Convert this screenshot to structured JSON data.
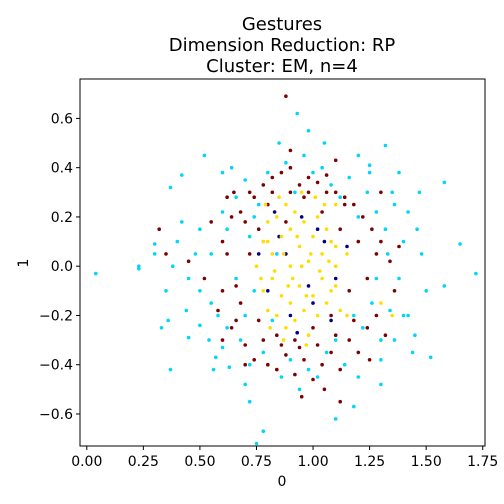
{
  "chart_data": {
    "type": "scatter",
    "title_lines": [
      "Gestures",
      "Dimension Reduction: RP",
      "Cluster: EM, n=4"
    ],
    "xlabel": "0",
    "ylabel": "1",
    "xlim": [
      -0.03,
      1.76
    ],
    "ylim": [
      -0.73,
      0.76
    ],
    "xticks": [
      0.0,
      0.25,
      0.5,
      0.75,
      1.0,
      1.25,
      1.5,
      1.75
    ],
    "xtick_labels": [
      "0.00",
      "0.25",
      "0.50",
      "0.75",
      "1.00",
      "1.25",
      "1.50",
      "1.75"
    ],
    "yticks": [
      -0.6,
      -0.4,
      -0.2,
      0.0,
      0.2,
      0.4,
      0.6
    ],
    "ytick_labels": [
      "−0.6",
      "−0.4",
      "−0.2",
      "0.0",
      "0.2",
      "0.4",
      "0.6"
    ],
    "grid": false,
    "series": [
      {
        "color": "#00d5ff",
        "values": [
          [
            0.04,
            -0.03
          ],
          [
            0.23,
            -0.01
          ],
          [
            0.23,
            0.0
          ],
          [
            0.3,
            0.05
          ],
          [
            0.3,
            0.09
          ],
          [
            0.33,
            -0.25
          ],
          [
            0.37,
            -0.42
          ],
          [
            0.37,
            0.32
          ],
          [
            0.42,
            0.37
          ],
          [
            0.45,
            -0.29
          ],
          [
            0.5,
            -0.24
          ],
          [
            0.52,
            0.45
          ],
          [
            0.57,
            -0.37
          ],
          [
            0.6,
            0.38
          ],
          [
            0.63,
            -0.41
          ],
          [
            0.7,
            -0.48
          ],
          [
            0.72,
            -0.55
          ],
          [
            0.75,
            -0.72
          ],
          [
            0.78,
            -0.67
          ],
          [
            0.85,
            0.5
          ],
          [
            0.93,
            0.62
          ],
          [
            0.98,
            0.55
          ],
          [
            1.05,
            0.5
          ],
          [
            1.1,
            -0.62
          ],
          [
            1.18,
            -0.57
          ],
          [
            1.2,
            0.45
          ],
          [
            1.25,
            0.41
          ],
          [
            1.3,
            -0.48
          ],
          [
            1.32,
            0.49
          ],
          [
            1.38,
            0.38
          ],
          [
            1.42,
            -0.2
          ],
          [
            1.47,
            0.3
          ],
          [
            1.5,
            -0.1
          ],
          [
            1.52,
            -0.37
          ],
          [
            1.58,
            0.34
          ],
          [
            1.58,
            -0.08
          ],
          [
            1.65,
            0.09
          ],
          [
            1.72,
            -0.03
          ],
          [
            0.35,
            -0.1
          ],
          [
            0.4,
            0.1
          ],
          [
            0.45,
            -0.05
          ],
          [
            0.5,
            0.15
          ],
          [
            0.55,
            -0.15
          ],
          [
            0.6,
            0.22
          ],
          [
            0.62,
            -0.25
          ],
          [
            0.65,
            0.3
          ],
          [
            0.68,
            -0.3
          ],
          [
            0.7,
            0.35
          ],
          [
            0.72,
            0.12
          ],
          [
            0.74,
            -0.1
          ],
          [
            0.76,
            0.25
          ],
          [
            0.78,
            -0.35
          ],
          [
            0.8,
            0.38
          ],
          [
            0.82,
            -0.22
          ],
          [
            0.84,
            0.05
          ],
          [
            0.86,
            -0.45
          ],
          [
            0.88,
            0.42
          ],
          [
            0.9,
            -0.38
          ],
          [
            0.92,
            0.3
          ],
          [
            0.94,
            -0.5
          ],
          [
            0.96,
            0.45
          ],
          [
            0.98,
            -0.42
          ],
          [
            1.0,
            0.38
          ],
          [
            1.02,
            -0.45
          ],
          [
            1.04,
            0.4
          ],
          [
            1.06,
            -0.35
          ],
          [
            1.08,
            0.33
          ],
          [
            1.1,
            -0.3
          ],
          [
            1.12,
            0.28
          ],
          [
            1.14,
            -0.4
          ],
          [
            1.16,
            0.36
          ],
          [
            1.18,
            -0.2
          ],
          [
            1.2,
            0.2
          ],
          [
            1.22,
            -0.25
          ],
          [
            1.24,
            0.3
          ],
          [
            1.26,
            -0.15
          ],
          [
            1.28,
            0.22
          ],
          [
            1.3,
            -0.3
          ],
          [
            1.32,
            0.15
          ],
          [
            1.34,
            -0.18
          ],
          [
            1.36,
            0.25
          ],
          [
            1.38,
            -0.05
          ],
          [
            1.4,
            0.1
          ],
          [
            1.42,
            0.22
          ],
          [
            1.45,
            -0.28
          ],
          [
            1.48,
            0.05
          ],
          [
            1.35,
            0.3
          ],
          [
            1.3,
            -0.38
          ],
          [
            1.25,
            0.38
          ],
          [
            1.2,
            -0.45
          ],
          [
            0.55,
            0.05
          ],
          [
            0.58,
            -0.2
          ],
          [
            0.62,
            0.15
          ],
          [
            0.66,
            -0.05
          ],
          [
            0.7,
            -0.2
          ],
          [
            0.74,
            0.2
          ],
          [
            0.66,
            0.28
          ],
          [
            0.6,
            -0.33
          ],
          [
            0.54,
            -0.3
          ],
          [
            0.5,
            -0.1
          ],
          [
            0.48,
            0.05
          ],
          [
            0.44,
            -0.18
          ],
          [
            0.42,
            0.18
          ],
          [
            0.38,
            0.0
          ],
          [
            0.36,
            -0.22
          ],
          [
            0.56,
            -0.42
          ],
          [
            0.64,
            0.4
          ],
          [
            0.72,
            -0.4
          ],
          [
            1.44,
            -0.35
          ],
          [
            1.46,
            0.15
          ],
          [
            1.4,
            -0.2
          ],
          [
            1.33,
            0.05
          ],
          [
            1.28,
            -0.05
          ],
          [
            1.36,
            -0.3
          ]
        ]
      },
      {
        "color": "#7f0000",
        "values": [
          [
            0.88,
            0.69
          ],
          [
            0.32,
            0.15
          ],
          [
            0.35,
            0.05
          ],
          [
            0.45,
            0.02
          ],
          [
            0.52,
            -0.05
          ],
          [
            0.55,
            0.18
          ],
          [
            0.58,
            -0.18
          ],
          [
            0.6,
            0.1
          ],
          [
            0.62,
            0.28
          ],
          [
            0.64,
            -0.25
          ],
          [
            0.66,
            -0.08
          ],
          [
            0.68,
            0.22
          ],
          [
            0.7,
            -0.32
          ],
          [
            0.72,
            0.3
          ],
          [
            0.74,
            -0.38
          ],
          [
            0.76,
            0.15
          ],
          [
            0.78,
            0.33
          ],
          [
            0.8,
            -0.4
          ],
          [
            0.82,
            0.36
          ],
          [
            0.84,
            -0.42
          ],
          [
            0.86,
            0.38
          ],
          [
            0.88,
            -0.36
          ],
          [
            0.9,
            0.4
          ],
          [
            0.92,
            -0.44
          ],
          [
            0.94,
            0.33
          ],
          [
            0.96,
            -0.38
          ],
          [
            0.98,
            0.36
          ],
          [
            1.0,
            -0.46
          ],
          [
            1.02,
            0.34
          ],
          [
            1.04,
            -0.4
          ],
          [
            1.06,
            0.37
          ],
          [
            1.08,
            -0.35
          ],
          [
            1.1,
            0.3
          ],
          [
            1.12,
            -0.42
          ],
          [
            1.14,
            0.28
          ],
          [
            1.16,
            -0.3
          ],
          [
            1.18,
            0.25
          ],
          [
            1.2,
            -0.35
          ],
          [
            1.22,
            0.2
          ],
          [
            1.24,
            -0.25
          ],
          [
            1.26,
            0.15
          ],
          [
            1.28,
            -0.2
          ],
          [
            1.3,
            0.1
          ],
          [
            1.32,
            -0.28
          ],
          [
            1.34,
            0.02
          ],
          [
            1.36,
            -0.1
          ],
          [
            1.38,
            0.08
          ],
          [
            1.12,
            -0.55
          ],
          [
            1.05,
            -0.5
          ],
          [
            0.95,
            -0.53
          ],
          [
            0.9,
            0.47
          ],
          [
            1.1,
            0.43
          ],
          [
            1.25,
            -0.38
          ],
          [
            1.3,
            0.3
          ],
          [
            0.65,
            0.3
          ],
          [
            0.7,
            -0.4
          ],
          [
            0.6,
            -0.3
          ],
          [
            0.62,
            0.05
          ],
          [
            0.68,
            -0.15
          ],
          [
            0.72,
            0.05
          ],
          [
            0.76,
            -0.22
          ],
          [
            0.8,
            0.25
          ],
          [
            0.84,
            -0.28
          ],
          [
            0.88,
            0.18
          ],
          [
            0.92,
            -0.3
          ],
          [
            0.96,
            0.28
          ],
          [
            1.0,
            -0.25
          ],
          [
            1.04,
            0.22
          ],
          [
            1.08,
            -0.2
          ],
          [
            1.12,
            0.15
          ],
          [
            1.16,
            -0.1
          ],
          [
            1.2,
            0.1
          ],
          [
            1.24,
            -0.05
          ],
          [
            1.28,
            0.05
          ],
          [
            0.74,
            0.28
          ],
          [
            0.78,
            -0.3
          ],
          [
            0.82,
            0.3
          ],
          [
            0.86,
            -0.32
          ],
          [
            0.9,
            0.3
          ],
          [
            0.94,
            -0.33
          ],
          [
            0.98,
            0.3
          ],
          [
            1.02,
            -0.32
          ],
          [
            1.06,
            0.3
          ],
          [
            1.1,
            -0.28
          ],
          [
            1.14,
            0.25
          ],
          [
            1.18,
            -0.22
          ],
          [
            0.7,
            0.18
          ],
          [
            0.66,
            -0.22
          ],
          [
            0.64,
            0.2
          ],
          [
            0.6,
            -0.1
          ]
        ]
      },
      {
        "color": "#00008b",
        "values": [
          [
            0.8,
            -0.1
          ],
          [
            0.85,
            0.12
          ],
          [
            0.9,
            -0.2
          ],
          [
            0.95,
            0.2
          ],
          [
            1.0,
            -0.15
          ],
          [
            1.05,
            0.1
          ],
          [
            1.1,
            -0.05
          ],
          [
            0.88,
            0.05
          ],
          [
            0.98,
            -0.08
          ],
          [
            1.02,
            0.15
          ],
          [
            0.93,
            -0.27
          ],
          [
            0.83,
            0.22
          ],
          [
            1.08,
            -0.22
          ],
          [
            0.76,
            0.05
          ],
          [
            1.15,
            0.08
          ]
        ]
      },
      {
        "color": "#ffdd00",
        "values": [
          [
            0.75,
            0.0
          ],
          [
            0.78,
            0.1
          ],
          [
            0.78,
            -0.1
          ],
          [
            0.8,
            0.18
          ],
          [
            0.8,
            -0.18
          ],
          [
            0.82,
            0.05
          ],
          [
            0.82,
            -0.05
          ],
          [
            0.84,
            0.2
          ],
          [
            0.84,
            -0.2
          ],
          [
            0.86,
            0.12
          ],
          [
            0.86,
            -0.12
          ],
          [
            0.88,
            0.25
          ],
          [
            0.88,
            -0.25
          ],
          [
            0.9,
            0.0
          ],
          [
            0.9,
            0.15
          ],
          [
            0.9,
            -0.15
          ],
          [
            0.92,
            0.22
          ],
          [
            0.92,
            -0.22
          ],
          [
            0.94,
            0.08
          ],
          [
            0.94,
            -0.08
          ],
          [
            0.96,
            0.18
          ],
          [
            0.96,
            -0.18
          ],
          [
            0.98,
            0.02
          ],
          [
            0.98,
            -0.28
          ],
          [
            1.0,
            0.12
          ],
          [
            1.0,
            -0.12
          ],
          [
            1.02,
            0.2
          ],
          [
            1.02,
            -0.2
          ],
          [
            1.04,
            0.05
          ],
          [
            1.04,
            -0.05
          ],
          [
            1.06,
            0.15
          ],
          [
            1.06,
            -0.15
          ],
          [
            1.08,
            0.1
          ],
          [
            1.08,
            -0.1
          ],
          [
            1.1,
            0.0
          ],
          [
            1.1,
            0.08
          ],
          [
            1.1,
            -0.08
          ],
          [
            0.85,
            0.28
          ],
          [
            0.95,
            0.3
          ],
          [
            1.05,
            0.25
          ],
          [
            0.87,
            -0.3
          ],
          [
            0.97,
            -0.32
          ],
          [
            1.12,
            -0.18
          ],
          [
            0.8,
            0.1
          ],
          [
            0.83,
            -0.02
          ],
          [
            0.87,
            0.05
          ],
          [
            0.91,
            -0.05
          ],
          [
            0.95,
            0.0
          ],
          [
            0.99,
            0.05
          ],
          [
            1.03,
            -0.02
          ],
          [
            1.07,
            0.02
          ],
          [
            0.77,
            -0.05
          ],
          [
            0.79,
            0.25
          ],
          [
            0.81,
            -0.25
          ],
          [
            1.15,
            0.05
          ],
          [
            1.15,
            -0.2
          ],
          [
            0.93,
            0.12
          ],
          [
            0.97,
            -0.12
          ],
          [
            1.01,
            0.28
          ],
          [
            0.89,
            -0.08
          ],
          [
            1.3,
            -0.15
          ],
          [
            1.35,
            -0.2
          ],
          [
            1.1,
            0.25
          ]
        ]
      }
    ]
  }
}
